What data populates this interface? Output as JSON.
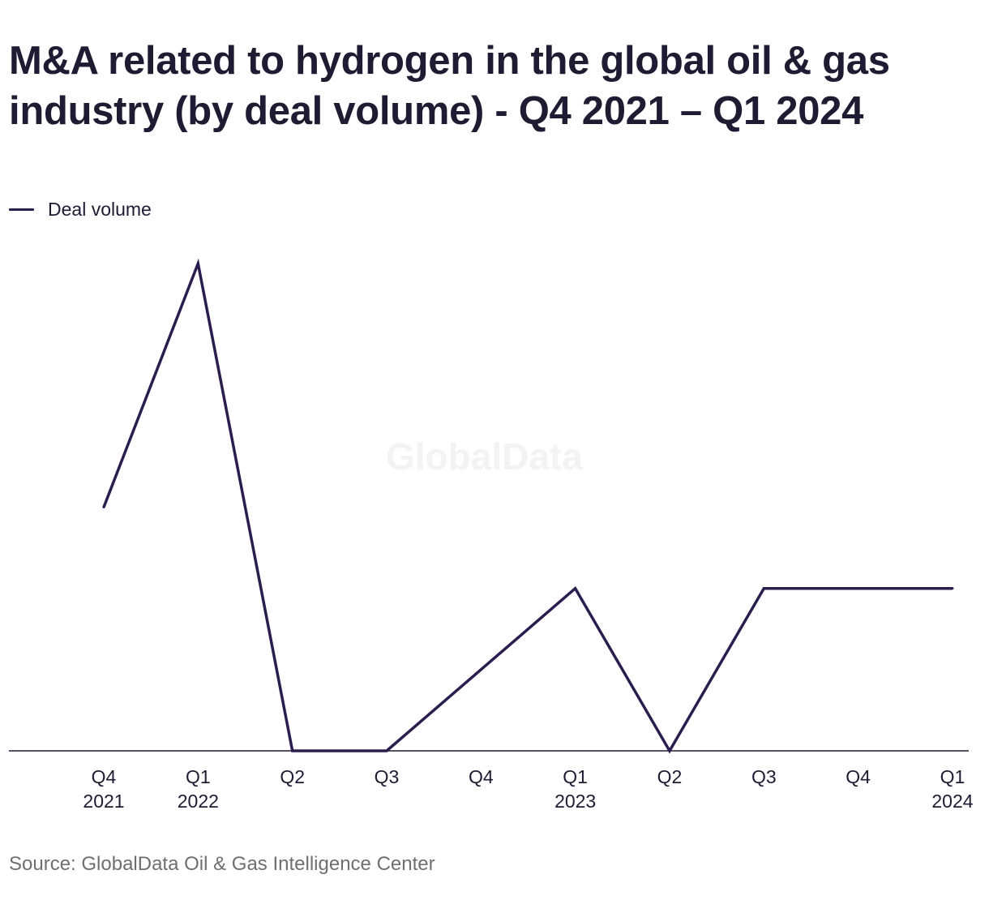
{
  "chart_data": {
    "type": "line",
    "title": "M&A related to hydrogen in the global oil & gas industry (by deal volume) - Q4 2021 – Q1 2024",
    "xlabel": "",
    "ylabel": "",
    "categories": [
      {
        "quarter": "Q4",
        "year": "2021"
      },
      {
        "quarter": "Q1",
        "year": "2022"
      },
      {
        "quarter": "Q2",
        "year": ""
      },
      {
        "quarter": "Q3",
        "year": ""
      },
      {
        "quarter": "Q4",
        "year": ""
      },
      {
        "quarter": "Q1",
        "year": "2023"
      },
      {
        "quarter": "Q2",
        "year": ""
      },
      {
        "quarter": "Q3",
        "year": ""
      },
      {
        "quarter": "Q4",
        "year": ""
      },
      {
        "quarter": "Q1",
        "year": "2024"
      }
    ],
    "series": [
      {
        "name": "Deal volume",
        "color": "#2b1e4f",
        "values": [
          3,
          6,
          0,
          0,
          1,
          2,
          0,
          2,
          2,
          2
        ]
      }
    ],
    "ylim": [
      0,
      6
    ],
    "grid": false,
    "legend_position": "top-left",
    "watermark": "GlobalData",
    "source": "Source: GlobalData Oil & Gas Intelligence Center"
  }
}
